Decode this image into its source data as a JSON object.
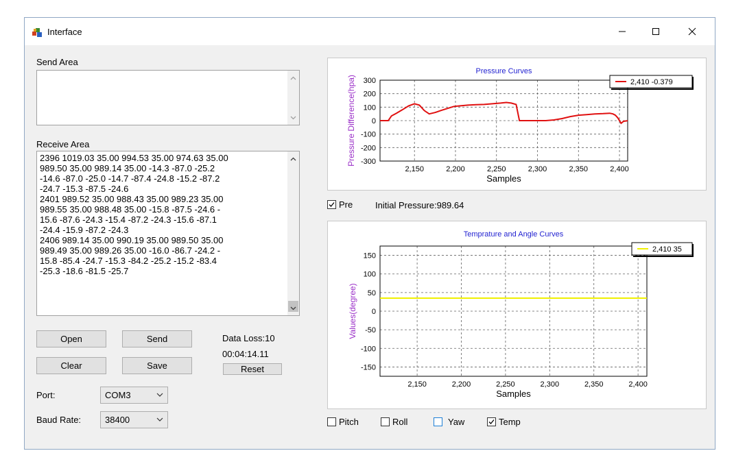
{
  "window": {
    "title": "Interface"
  },
  "send_area": {
    "label": "Send Area",
    "value": ""
  },
  "receive_area": {
    "label": "Receive Area",
    "lines": [
      "2396 1019.03 35.00 994.53 35.00 974.63 35.00",
      " 989.50 35.00 989.14 35.00 -14.3 -87.0 -25.2",
      "-14.6 -87.0 -25.0 -14.7 -87.4 -24.8 -15.2 -87.2",
      "-24.7 -15.3 -87.5 -24.6",
      "2401 989.52 35.00 988.43 35.00 989.23 35.00",
      "989.55 35.00 988.48 35.00 -15.8 -87.5 -24.6 -",
      "15.6 -87.6 -24.3 -15.4 -87.2 -24.3 -15.6 -87.1",
      "-24.4 -15.9 -87.2 -24.3",
      "2406 989.14 35.00 990.19 35.00 989.50 35.00",
      "989.49 35.00 989.26 35.00 -16.0 -86.7 -24.2 -",
      "15.8 -85.4 -24.7 -15.3 -84.2 -25.2 -15.2 -83.4",
      "-25.3 -18.6 -81.5 -25.7"
    ]
  },
  "buttons": {
    "open": "Open",
    "send": "Send",
    "clear": "Clear",
    "save": "Save",
    "reset": "Reset"
  },
  "status": {
    "data_loss": "Data Loss:10",
    "elapsed": "00:04:14.11"
  },
  "port": {
    "label": "Port:",
    "value": "COM3"
  },
  "baud": {
    "label": "Baud Rate:",
    "value": "38400"
  },
  "pre_check": {
    "label": "Pre",
    "checked": true
  },
  "initial_pressure": "Initial Pressure:989.64",
  "toggles": [
    {
      "label": "Pitch",
      "checked": false
    },
    {
      "label": "Roll",
      "checked": false
    },
    {
      "label": "Yaw",
      "checked": false
    },
    {
      "label": "Temp",
      "checked": true
    }
  ],
  "icons": {
    "app": "app-icon",
    "minimize": "minimize-icon",
    "maximize": "maximize-icon",
    "close": "close-icon"
  },
  "chart_data": [
    {
      "type": "line",
      "title": "Pressure Curves",
      "xlabel": "Samples",
      "ylabel": "Pressure Difference(hpa)",
      "xlim": [
        2108,
        2410
      ],
      "ylim": [
        -300,
        300
      ],
      "xticks": [
        2150,
        2200,
        2250,
        2300,
        2350,
        2400
      ],
      "yticks": [
        300,
        200,
        100,
        0,
        -100,
        -200,
        -300
      ],
      "grid": true,
      "legend_position": "top-right",
      "color": "#e01010",
      "series": [
        {
          "name": "2,410 -0.379",
          "x": [
            2108,
            2118,
            2122,
            2128,
            2135,
            2143,
            2150,
            2156,
            2162,
            2168,
            2175,
            2182,
            2190,
            2198,
            2206,
            2215,
            2225,
            2235,
            2245,
            2255,
            2262,
            2268,
            2274,
            2278,
            2282,
            2290,
            2300,
            2310,
            2320,
            2330,
            2340,
            2350,
            2360,
            2370,
            2380,
            2388,
            2392,
            2395,
            2398,
            2400,
            2402,
            2405,
            2410
          ],
          "y": [
            0,
            0,
            35,
            55,
            80,
            110,
            125,
            115,
            75,
            50,
            60,
            75,
            90,
            105,
            110,
            115,
            118,
            120,
            125,
            130,
            135,
            130,
            120,
            0,
            0,
            0,
            0,
            0,
            5,
            15,
            30,
            40,
            45,
            50,
            52,
            55,
            50,
            40,
            20,
            0,
            -20,
            -5,
            -0.379
          ]
        }
      ]
    },
    {
      "type": "line",
      "title": "Temprature and Angle  Curves",
      "xlabel": "Samples",
      "ylabel": "Values(degree)",
      "xlim": [
        2108,
        2410
      ],
      "ylim": [
        -175,
        175
      ],
      "xticks": [
        2150,
        2200,
        2250,
        2300,
        2350,
        2400
      ],
      "yticks": [
        150,
        100,
        50,
        0,
        -50,
        -100,
        -150
      ],
      "grid": true,
      "legend_position": "top-right",
      "color": "#f0f000",
      "series": [
        {
          "name": "2,410 35",
          "x": [
            2108,
            2410
          ],
          "y": [
            35,
            35
          ]
        }
      ]
    }
  ]
}
